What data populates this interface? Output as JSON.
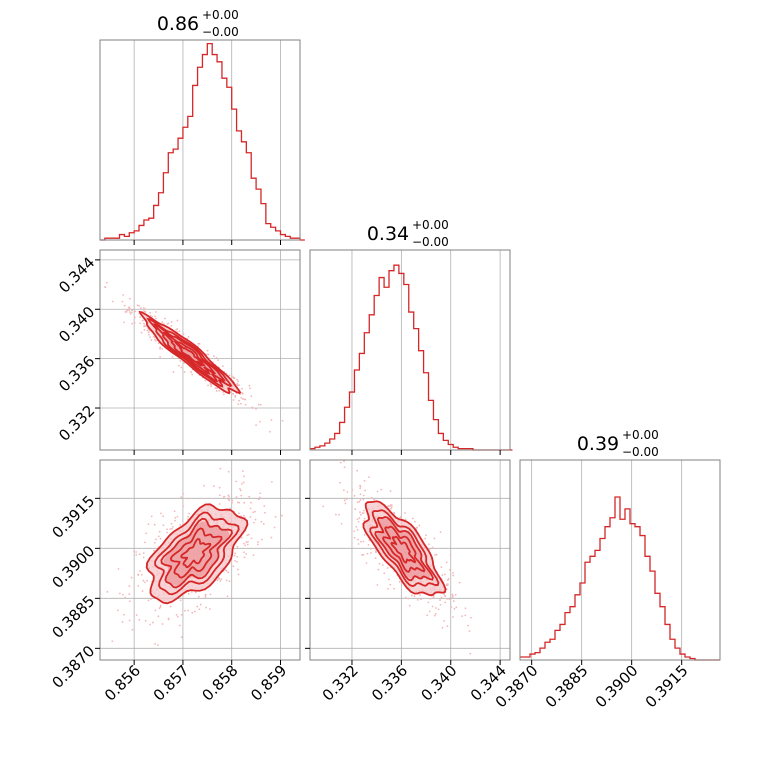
{
  "chart_data": {
    "type": "corner",
    "colors": {
      "accent": "#d62728",
      "fill_light": "#f5c6c8",
      "fill_mid": "#ec9a9d",
      "scatter": "#f2b8ba",
      "frame": "#808080",
      "grid": "#b0b0b0"
    },
    "grid": true,
    "parameters": [
      {
        "title_main": "0.86",
        "title_sup": "+0.00",
        "title_sub": "−0.00",
        "range": [
          0.8553,
          0.8594
        ],
        "ticks": [
          {
            "value": 0.856,
            "label": "0.856"
          },
          {
            "value": 0.857,
            "label": "0.857"
          },
          {
            "value": 0.858,
            "label": "0.858"
          },
          {
            "value": 0.859,
            "label": "0.859"
          }
        ],
        "hist": {
          "edges_start": 0.8553,
          "bin_width": 0.0001,
          "counts": [
            0,
            1,
            1,
            1,
            3,
            2,
            4,
            5,
            8,
            11,
            12,
            19,
            26,
            37,
            48,
            50,
            56,
            62,
            68,
            85,
            95,
            102,
            108,
            102,
            98,
            89,
            84,
            72,
            60,
            54,
            48,
            34,
            28,
            20,
            9,
            7,
            5,
            3,
            2,
            1,
            1,
            0
          ],
          "ymax": 110
        }
      },
      {
        "title_main": "0.34",
        "title_sup": "+0.00",
        "title_sub": "−0.00",
        "range": [
          0.3286,
          0.3448
        ],
        "ticks": [
          {
            "value": 0.332,
            "label": "0.332"
          },
          {
            "value": 0.336,
            "label": "0.336"
          },
          {
            "value": 0.34,
            "label": "0.340"
          },
          {
            "value": 0.344,
            "label": "0.344"
          }
        ],
        "hist": {
          "edges_start": 0.3286,
          "bin_width": 0.0004,
          "counts": [
            1,
            2,
            3,
            5,
            8,
            12,
            20,
            31,
            42,
            58,
            70,
            85,
            98,
            112,
            125,
            118,
            130,
            134,
            128,
            120,
            100,
            88,
            72,
            56,
            36,
            22,
            12,
            7,
            4,
            2,
            1,
            1,
            1,
            0,
            0,
            0,
            0,
            0,
            0,
            0,
            0
          ],
          "ymax": 145
        }
      },
      {
        "title_main": "0.39",
        "title_sup": "+0.00",
        "title_sub": "−0.00",
        "range": [
          0.38665,
          0.39265
        ],
        "ticks": [
          {
            "value": 0.387,
            "label": "0.3870"
          },
          {
            "value": 0.3885,
            "label": "0.3885"
          },
          {
            "value": 0.39,
            "label": "0.3900"
          },
          {
            "value": 0.3915,
            "label": "0.3915"
          }
        ],
        "hist": {
          "edges_start": 0.38665,
          "bin_width": 0.00015,
          "counts": [
            2,
            2,
            4,
            5,
            8,
            12,
            14,
            20,
            24,
            32,
            36,
            44,
            52,
            66,
            70,
            74,
            82,
            90,
            96,
            110,
            95,
            102,
            92,
            90,
            84,
            70,
            60,
            45,
            36,
            24,
            14,
            8,
            4,
            2,
            1,
            0,
            0,
            0,
            0,
            0
          ],
          "ymax": 135
        }
      }
    ],
    "pairs": [
      {
        "row": 1,
        "col": 0,
        "center": [
          0.85715,
          0.3363
        ],
        "sigma": [
          0.00048,
          0.00155
        ],
        "rho": -0.95
      },
      {
        "row": 2,
        "col": 0,
        "center": [
          0.85725,
          0.38985
        ],
        "sigma": [
          0.00048,
          0.0007
        ],
        "rho": 0.55
      },
      {
        "row": 2,
        "col": 1,
        "center": [
          0.3361,
          0.38995
        ],
        "sigma": [
          0.00155,
          0.0007
        ],
        "rho": -0.75
      }
    ]
  }
}
